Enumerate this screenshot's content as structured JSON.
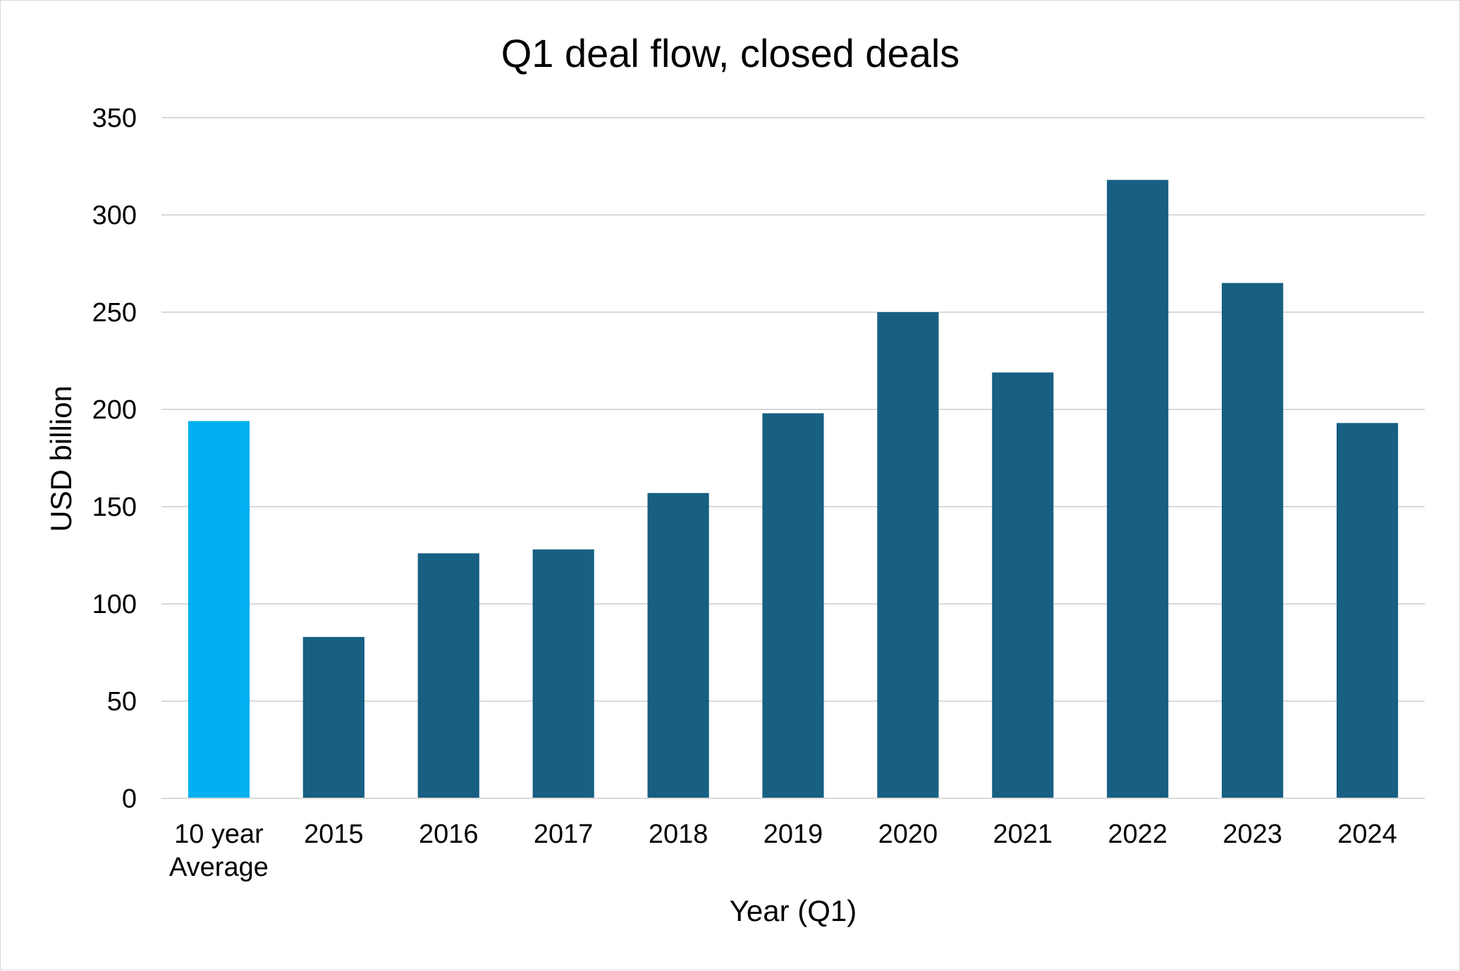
{
  "chart_data": {
    "type": "bar",
    "title": "Q1 deal flow, closed deals",
    "xlabel": "Year (Q1)",
    "ylabel": "USD billion",
    "ylim": [
      0,
      350
    ],
    "yticks": [
      0,
      50,
      100,
      150,
      200,
      250,
      300,
      350
    ],
    "grid": true,
    "legend": "none",
    "categories": [
      [
        "10 year",
        "Average"
      ],
      [
        "2015"
      ],
      [
        "2016"
      ],
      [
        "2017"
      ],
      [
        "2018"
      ],
      [
        "2019"
      ],
      [
        "2020"
      ],
      [
        "2021"
      ],
      [
        "2022"
      ],
      [
        "2023"
      ],
      [
        "2024"
      ]
    ],
    "values": [
      194,
      83,
      126,
      128,
      157,
      198,
      250,
      219,
      318,
      265,
      193
    ],
    "colors": {
      "highlight": "#00b0f0",
      "bar": "#175f83",
      "grid": "#d9d9d9",
      "axis": "#d9d9d9"
    },
    "bar_colors": [
      "highlight",
      "bar",
      "bar",
      "bar",
      "bar",
      "bar",
      "bar",
      "bar",
      "bar",
      "bar",
      "bar"
    ]
  }
}
